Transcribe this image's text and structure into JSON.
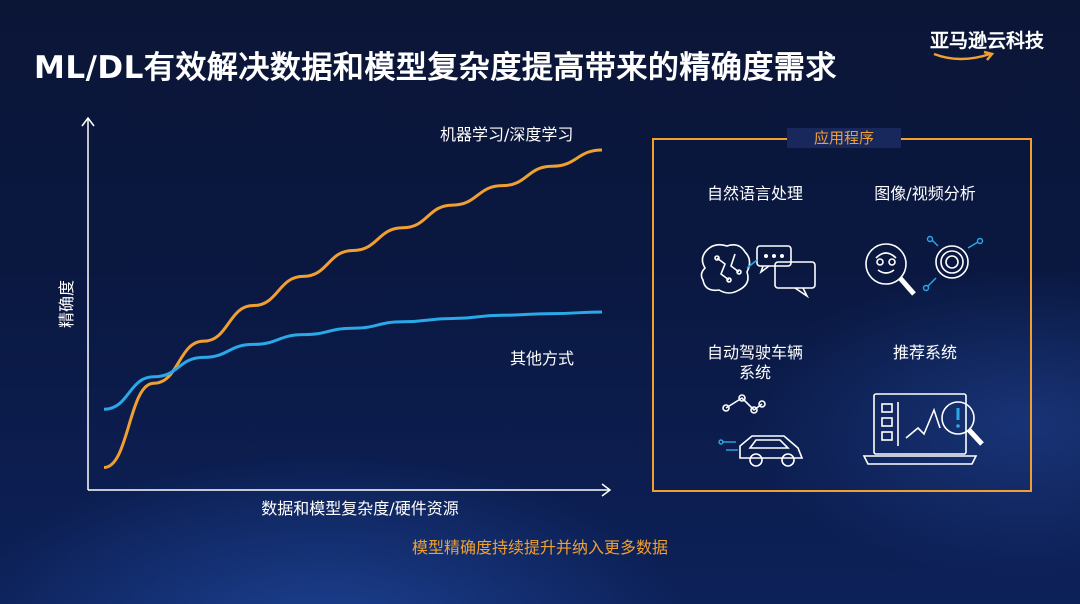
{
  "header": {
    "title": "ML/DL有效解决数据和模型复杂度提高带来的精确度需求",
    "brand": "亚马逊云科技"
  },
  "chart_data": {
    "type": "line",
    "xlabel": "数据和模型复杂度/硬件资源",
    "ylabel": "精确度",
    "qualitative": true,
    "x": [
      0,
      0.1,
      0.2,
      0.3,
      0.4,
      0.5,
      0.6,
      0.7,
      0.8,
      0.9,
      1.0
    ],
    "series": [
      {
        "name": "机器学习/深度学习",
        "color": "#f0a030",
        "values": [
          0.02,
          0.28,
          0.41,
          0.52,
          0.61,
          0.69,
          0.76,
          0.83,
          0.89,
          0.95,
          1.0
        ]
      },
      {
        "name": "其他方式",
        "color": "#2aa8e8",
        "values": [
          0.2,
          0.3,
          0.36,
          0.4,
          0.43,
          0.45,
          0.47,
          0.48,
          0.49,
          0.495,
          0.5
        ]
      }
    ]
  },
  "apps": {
    "title": "应用程序",
    "items": [
      {
        "label": "自然语言处理"
      },
      {
        "label": "图像/视频分析"
      },
      {
        "label_line1": "自动驾驶车辆",
        "label_line2": "系统"
      },
      {
        "label": "推荐系统"
      }
    ]
  },
  "footer": {
    "caption": "模型精确度持续提升并纳入更多数据"
  },
  "colors": {
    "accent": "#f0a030",
    "blue_line": "#2aa8e8",
    "background": "#0b1a45"
  }
}
